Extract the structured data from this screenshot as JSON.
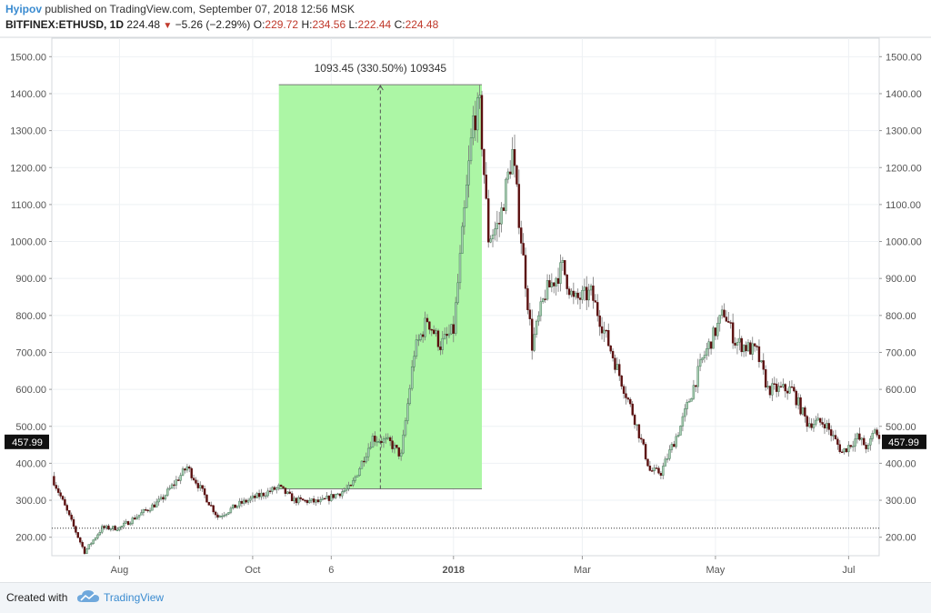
{
  "header": {
    "author": "Hyipov",
    "published_text": "published on TradingView.com, September 07, 2018 12:56 MSK",
    "symbol": "BITFINEX:ETHUSD, 1D",
    "last": "224.48",
    "change": "−5.26 (−2.29%)",
    "o_label": "O:",
    "o_value": "229.72",
    "h_label": "H:",
    "h_value": "234.56",
    "l_label": "L:",
    "l_value": "222.44",
    "c_label": "C:",
    "c_value": "224.48",
    "change_color": "#c0392b"
  },
  "footer": {
    "created_with": "Created with",
    "brand": "TradingView",
    "logo_icon": "tradingview-cloud-icon"
  },
  "chart_data": {
    "type": "candlestick",
    "title": "",
    "ylim": [
      150,
      1550
    ],
    "yticks": [
      200,
      300,
      400,
      500,
      600,
      700,
      800,
      900,
      1000,
      1100,
      1200,
      1300,
      1400,
      1500
    ],
    "ytick_labels": [
      "200.00",
      "300.00",
      "400.00",
      "500.00",
      "600.00",
      "700.00",
      "800.00",
      "900.00",
      "1000.00",
      "1100.00",
      "1200.00",
      "1300.00",
      "1400.00",
      "1500.00"
    ],
    "xaxis_dates": [
      "2017-07-01",
      "2018-07-15"
    ],
    "xticks": [
      {
        "date": "2017-08-01",
        "label": "Aug",
        "bold": false
      },
      {
        "date": "2017-10-01",
        "label": "Oct",
        "bold": false
      },
      {
        "date": "2017-11-06",
        "label": "6",
        "bold": false
      },
      {
        "date": "2018-01-01",
        "label": "2018",
        "bold": true
      },
      {
        "date": "2018-03-01",
        "label": "Mar",
        "bold": false
      },
      {
        "date": "2018-05-01",
        "label": "May",
        "bold": false
      },
      {
        "date": "2018-07-01",
        "label": "Jul",
        "bold": false
      }
    ],
    "grid": true,
    "last_price_label": "457.99",
    "last_price": 457.99,
    "horizontal_line": 224.48,
    "up_color": "#a9cdb3",
    "down_color": "#5a0f0f",
    "key_points": [
      {
        "date": "2017-07-01",
        "price": 365
      },
      {
        "date": "2017-07-16",
        "price": 160
      },
      {
        "date": "2017-07-24",
        "price": 225
      },
      {
        "date": "2017-08-01",
        "price": 225
      },
      {
        "date": "2017-08-20",
        "price": 300
      },
      {
        "date": "2017-09-01",
        "price": 390
      },
      {
        "date": "2017-09-15",
        "price": 255
      },
      {
        "date": "2017-09-25",
        "price": 290
      },
      {
        "date": "2017-10-13",
        "price": 335
      },
      {
        "date": "2017-10-20",
        "price": 300
      },
      {
        "date": "2017-11-01",
        "price": 295
      },
      {
        "date": "2017-11-15",
        "price": 335
      },
      {
        "date": "2017-11-25",
        "price": 470
      },
      {
        "date": "2017-12-03",
        "price": 455
      },
      {
        "date": "2017-12-08",
        "price": 420
      },
      {
        "date": "2017-12-14",
        "price": 700
      },
      {
        "date": "2017-12-20",
        "price": 790
      },
      {
        "date": "2017-12-26",
        "price": 720
      },
      {
        "date": "2018-01-01",
        "price": 760
      },
      {
        "date": "2018-01-10",
        "price": 1330
      },
      {
        "date": "2018-01-13",
        "price": 1360
      },
      {
        "date": "2018-01-17",
        "price": 1010
      },
      {
        "date": "2018-01-22",
        "price": 1050
      },
      {
        "date": "2018-01-28",
        "price": 1240
      },
      {
        "date": "2018-02-06",
        "price": 720
      },
      {
        "date": "2018-02-12",
        "price": 860
      },
      {
        "date": "2018-02-20",
        "price": 930
      },
      {
        "date": "2018-02-25",
        "price": 840
      },
      {
        "date": "2018-03-05",
        "price": 860
      },
      {
        "date": "2018-03-15",
        "price": 690
      },
      {
        "date": "2018-03-25",
        "price": 520
      },
      {
        "date": "2018-04-01",
        "price": 380
      },
      {
        "date": "2018-04-06",
        "price": 375
      },
      {
        "date": "2018-04-15",
        "price": 500
      },
      {
        "date": "2018-04-25",
        "price": 680
      },
      {
        "date": "2018-05-05",
        "price": 810
      },
      {
        "date": "2018-05-10",
        "price": 730
      },
      {
        "date": "2018-05-20",
        "price": 700
      },
      {
        "date": "2018-05-25",
        "price": 600
      },
      {
        "date": "2018-06-05",
        "price": 600
      },
      {
        "date": "2018-06-12",
        "price": 510
      },
      {
        "date": "2018-06-20",
        "price": 510
      },
      {
        "date": "2018-06-28",
        "price": 430
      },
      {
        "date": "2018-07-05",
        "price": 470
      },
      {
        "date": "2018-07-10",
        "price": 440
      },
      {
        "date": "2018-07-13",
        "price": 495
      },
      {
        "date": "2018-07-15",
        "price": 458
      }
    ],
    "range_box": {
      "start_date": "2017-10-13",
      "end_date": "2018-01-14",
      "low": 330.85,
      "high": 1424.3,
      "label": "1093.45 (330.50%) 109345",
      "fill": "#a8f5a0"
    }
  }
}
